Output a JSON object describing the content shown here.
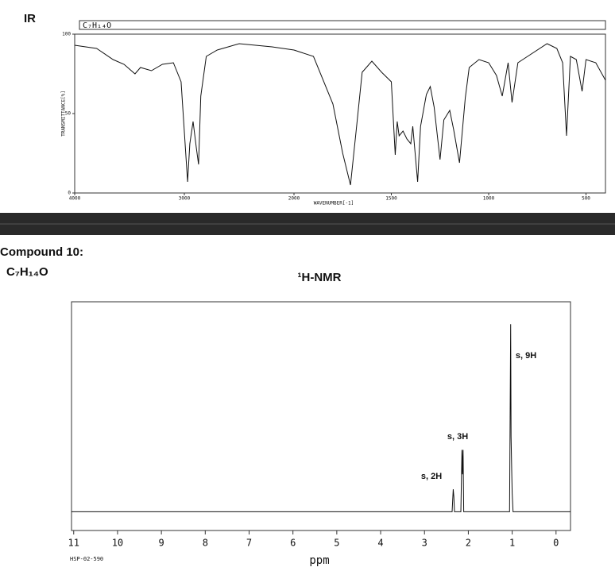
{
  "heading": {
    "compound": "Compound 10:",
    "formula": "C₇H₁₄O"
  },
  "chart_data": [
    {
      "type": "line",
      "title": "IR",
      "formula_box": "C₇H₁₄O",
      "xlabel": "WAVENUMBER[-1]",
      "ylabel": "TRANSMITTANCE[%]",
      "color": "#111111",
      "x": [
        4000,
        3800,
        3650,
        3550,
        3450,
        3400,
        3300,
        3200,
        3100,
        3030,
        2970,
        2950,
        2920,
        2890,
        2870,
        2850,
        2800,
        2700,
        2500,
        2200,
        2000,
        1900,
        1800,
        1750,
        1710,
        1680,
        1650,
        1600,
        1550,
        1500,
        1480,
        1470,
        1460,
        1440,
        1420,
        1400,
        1390,
        1365,
        1350,
        1320,
        1300,
        1280,
        1250,
        1230,
        1200,
        1180,
        1150,
        1120,
        1100,
        1050,
        1000,
        960,
        930,
        900,
        880,
        850,
        800,
        700,
        650,
        620,
        600,
        580,
        550,
        520,
        500,
        450,
        400
      ],
      "values": [
        93,
        91,
        84,
        81,
        75,
        79,
        77,
        81,
        82,
        70,
        7,
        31,
        45,
        28,
        18,
        61,
        86,
        90,
        94,
        92,
        90,
        86,
        56,
        25,
        5,
        40,
        76,
        83,
        76,
        70,
        24,
        45,
        36,
        39,
        34,
        31,
        42,
        7,
        42,
        62,
        67,
        54,
        21,
        46,
        52,
        40,
        19,
        60,
        79,
        84,
        82,
        74,
        61,
        82,
        57,
        82,
        86,
        94,
        91,
        82,
        36,
        86,
        84,
        64,
        84,
        82,
        71
      ],
      "xlim": [
        4000,
        400
      ],
      "ylim": [
        0,
        100
      ],
      "xticks": [
        4000,
        3000,
        2000,
        1500,
        1000,
        500
      ],
      "yticks": [
        0,
        50,
        100
      ]
    },
    {
      "type": "line",
      "title": "¹H-NMR",
      "xlabel": "ppm",
      "footnote": "HSP-02-590",
      "color": "#111111",
      "annotations": [
        "s, 9H",
        "s, 3H",
        "s, 2H"
      ],
      "x": [
        11.05,
        2.37,
        2.345,
        2.33,
        2.315,
        2.17,
        2.145,
        2.135,
        2.12,
        2.105,
        1.06,
        1.035,
        1.025,
        1.01,
        1.0,
        0.98,
        -0.33
      ],
      "values": [
        0,
        0,
        12,
        8,
        0,
        0,
        33,
        20,
        33,
        0,
        0,
        100,
        40,
        20,
        10,
        0,
        0
      ],
      "xlim": [
        11.05,
        -0.33
      ],
      "ylim": [
        -10,
        112
      ],
      "xticks": [
        11,
        10,
        9,
        8,
        7,
        6,
        5,
        4,
        3,
        2,
        1,
        0
      ]
    }
  ]
}
